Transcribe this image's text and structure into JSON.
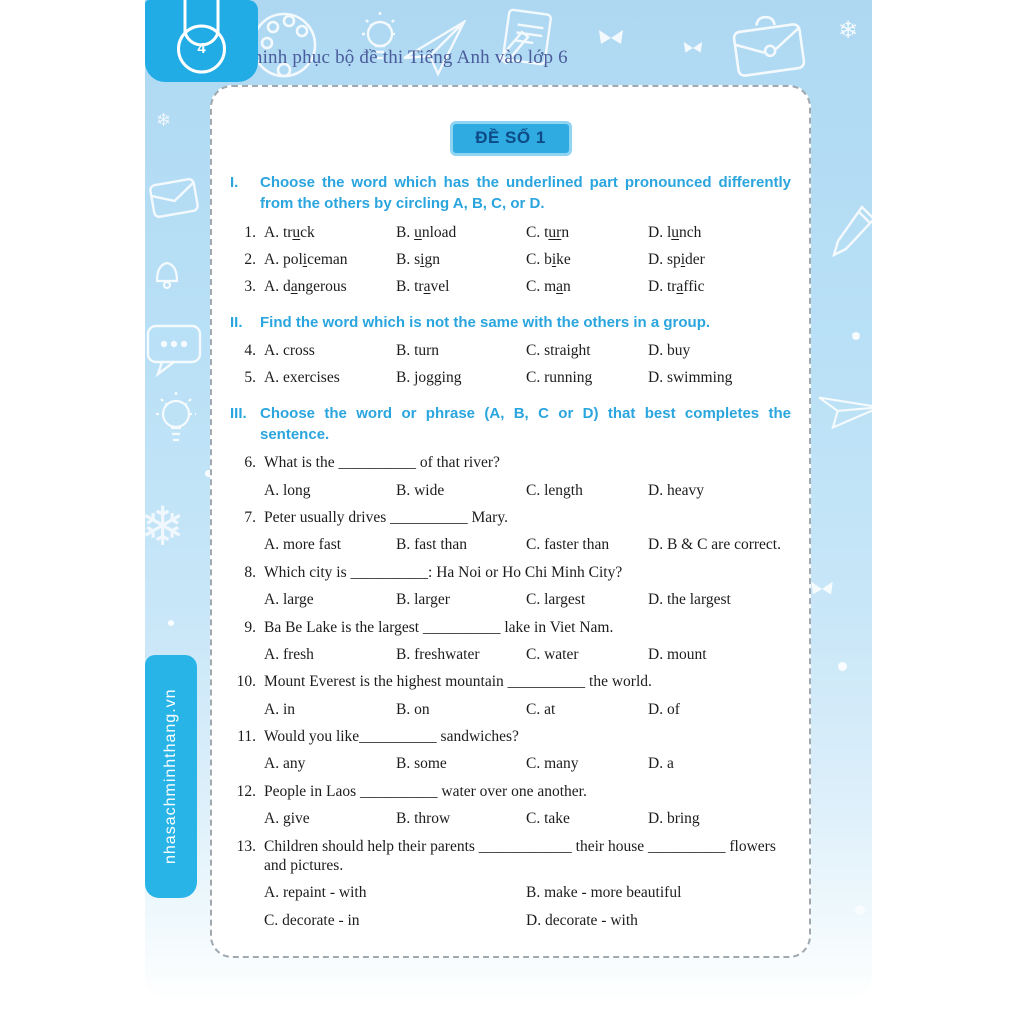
{
  "page": {
    "page_number": "4",
    "header_title": "Chinh phục bộ đề thi Tiếng Anh vào lớp 6",
    "sidebar_text": "nhasachminhthang.vn",
    "test_title": "ĐỀ SỐ 1"
  },
  "colors": {
    "bright_blue": "#21ace5",
    "sidebar_blue": "#29b4e8",
    "light_blue_bg": "#aed8f2",
    "heading_blue": "#2aa5de",
    "badge_bg": "#2fabe1",
    "badge_border": "#8fd4f1",
    "badge_text": "#0d4a86",
    "header_text": "#4a5c9b"
  },
  "icons": {
    "snowflake": "❄"
  },
  "sections": [
    {
      "numeral": "I.",
      "heading": "Choose the word which has the underlined part pronounced differently from the others by circling A, B, C, or D.",
      "questions": [
        {
          "num": "1.",
          "stem": "",
          "layout": "inline4",
          "options": [
            {
              "label": "A.",
              "pre": "tr",
              "u": "u",
              "post": "ck"
            },
            {
              "label": "B.",
              "pre": "",
              "u": "u",
              "post": "nload"
            },
            {
              "label": "C.",
              "pre": "t",
              "u": "ur",
              "post": "n"
            },
            {
              "label": "D.",
              "pre": "l",
              "u": "u",
              "post": "nch"
            }
          ]
        },
        {
          "num": "2.",
          "stem": "",
          "layout": "inline4",
          "options": [
            {
              "label": "A.",
              "pre": "pol",
              "u": "i",
              "post": "ceman"
            },
            {
              "label": "B.",
              "pre": "s",
              "u": "i",
              "post": "gn"
            },
            {
              "label": "C.",
              "pre": "b",
              "u": "i",
              "post": "ke"
            },
            {
              "label": "D.",
              "pre": "sp",
              "u": "i",
              "post": "der"
            }
          ]
        },
        {
          "num": "3.",
          "stem": "",
          "layout": "inline4",
          "options": [
            {
              "label": "A.",
              "pre": "d",
              "u": "a",
              "post": "ngerous"
            },
            {
              "label": "B.",
              "pre": "tr",
              "u": "a",
              "post": "vel"
            },
            {
              "label": "C.",
              "pre": "m",
              "u": "a",
              "post": "n"
            },
            {
              "label": "D.",
              "pre": "tr",
              "u": "a",
              "post": "ffic"
            }
          ]
        }
      ]
    },
    {
      "numeral": "II.",
      "heading": "Find the word which is not the same with the others in a group.",
      "questions": [
        {
          "num": "4.",
          "stem": "",
          "layout": "inline4",
          "options": [
            {
              "label": "A.",
              "pre": "cross",
              "u": "",
              "post": ""
            },
            {
              "label": "B.",
              "pre": "turn",
              "u": "",
              "post": ""
            },
            {
              "label": "C.",
              "pre": "straight",
              "u": "",
              "post": ""
            },
            {
              "label": "D.",
              "pre": "buy",
              "u": "",
              "post": ""
            }
          ]
        },
        {
          "num": "5.",
          "stem": "",
          "layout": "inline4",
          "options": [
            {
              "label": "A.",
              "pre": "exercises",
              "u": "",
              "post": ""
            },
            {
              "label": "B.",
              "pre": "jogging",
              "u": "",
              "post": ""
            },
            {
              "label": "C.",
              "pre": "running",
              "u": "",
              "post": ""
            },
            {
              "label": "D.",
              "pre": "swimming",
              "u": "",
              "post": ""
            }
          ]
        }
      ]
    },
    {
      "numeral": "III.",
      "heading": "Choose the word or phrase (A, B, C or D) that best completes the sentence.",
      "questions": [
        {
          "num": "6.",
          "stem": "What is the __________ of that river?",
          "layout": "grid4",
          "options": [
            {
              "label": "A.",
              "pre": "long",
              "u": "",
              "post": ""
            },
            {
              "label": "B.",
              "pre": "wide",
              "u": "",
              "post": ""
            },
            {
              "label": "C.",
              "pre": "length",
              "u": "",
              "post": ""
            },
            {
              "label": "D.",
              "pre": "heavy",
              "u": "",
              "post": ""
            }
          ]
        },
        {
          "num": "7.",
          "stem": "Peter usually drives __________ Mary.",
          "layout": "grid4",
          "options": [
            {
              "label": "A.",
              "pre": "more fast",
              "u": "",
              "post": ""
            },
            {
              "label": "B.",
              "pre": "fast than",
              "u": "",
              "post": ""
            },
            {
              "label": "C.",
              "pre": "faster than",
              "u": "",
              "post": ""
            },
            {
              "label": "D.",
              "pre": "B & C are correct.",
              "u": "",
              "post": ""
            }
          ]
        },
        {
          "num": "8.",
          "stem": "Which city is __________: Ha Noi or Ho Chi Minh City?",
          "layout": "grid4",
          "options": [
            {
              "label": "A.",
              "pre": "large",
              "u": "",
              "post": ""
            },
            {
              "label": "B.",
              "pre": "larger",
              "u": "",
              "post": ""
            },
            {
              "label": "C.",
              "pre": "largest",
              "u": "",
              "post": ""
            },
            {
              "label": "D.",
              "pre": "the largest",
              "u": "",
              "post": ""
            }
          ]
        },
        {
          "num": "9.",
          "stem": "Ba Be Lake is the largest __________ lake in Viet Nam.",
          "layout": "grid4",
          "options": [
            {
              "label": "A.",
              "pre": "fresh",
              "u": "",
              "post": ""
            },
            {
              "label": "B.",
              "pre": "freshwater",
              "u": "",
              "post": ""
            },
            {
              "label": "C.",
              "pre": "water",
              "u": "",
              "post": ""
            },
            {
              "label": "D.",
              "pre": "mount",
              "u": "",
              "post": ""
            }
          ]
        },
        {
          "num": "10.",
          "stem": "Mount Everest is the highest mountain __________ the world.",
          "layout": "grid4",
          "options": [
            {
              "label": "A.",
              "pre": "in",
              "u": "",
              "post": ""
            },
            {
              "label": "B.",
              "pre": "on",
              "u": "",
              "post": ""
            },
            {
              "label": "C.",
              "pre": "at",
              "u": "",
              "post": ""
            },
            {
              "label": "D.",
              "pre": "of",
              "u": "",
              "post": ""
            }
          ]
        },
        {
          "num": "11.",
          "stem": "Would you like__________ sandwiches?",
          "layout": "grid4",
          "options": [
            {
              "label": "A.",
              "pre": "any",
              "u": "",
              "post": ""
            },
            {
              "label": "B.",
              "pre": "some",
              "u": "",
              "post": ""
            },
            {
              "label": "C.",
              "pre": "many",
              "u": "",
              "post": ""
            },
            {
              "label": "D.",
              "pre": "a",
              "u": "",
              "post": ""
            }
          ]
        },
        {
          "num": "12.",
          "stem": "People in Laos __________ water over one another.",
          "layout": "grid4",
          "options": [
            {
              "label": "A.",
              "pre": "give",
              "u": "",
              "post": ""
            },
            {
              "label": "B.",
              "pre": "throw",
              "u": "",
              "post": ""
            },
            {
              "label": "C.",
              "pre": "take",
              "u": "",
              "post": ""
            },
            {
              "label": "D.",
              "pre": "bring",
              "u": "",
              "post": ""
            }
          ]
        },
        {
          "num": "13.",
          "stem": "Children should help their parents ____________ their house __________ flowers and pictures.",
          "layout": "grid2",
          "options": [
            {
              "label": "A.",
              "pre": "repaint - with",
              "u": "",
              "post": ""
            },
            {
              "label": "B.",
              "pre": "make - more beautiful",
              "u": "",
              "post": ""
            },
            {
              "label": "C.",
              "pre": "decorate - in",
              "u": "",
              "post": ""
            },
            {
              "label": "D.",
              "pre": "decorate - with",
              "u": "",
              "post": ""
            }
          ]
        }
      ]
    }
  ]
}
